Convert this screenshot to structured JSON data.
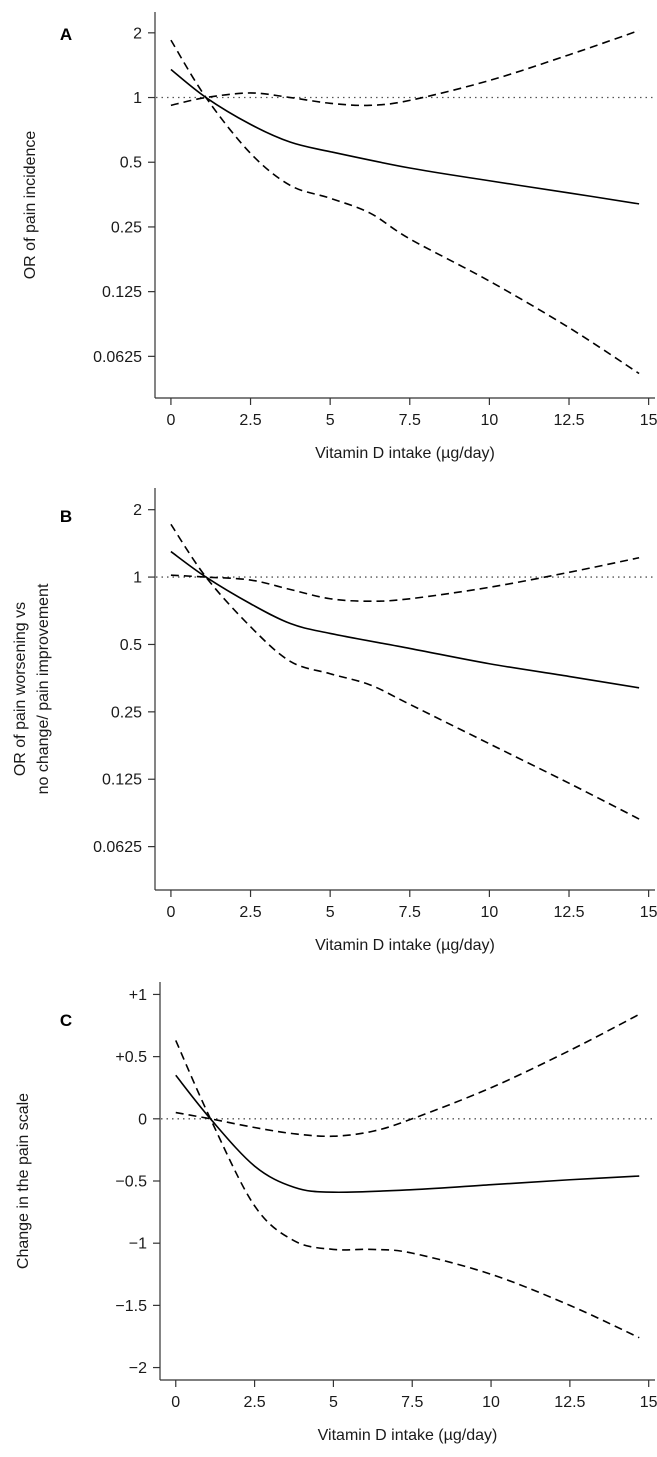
{
  "chart_data": [
    {
      "type": "line",
      "panel": "A",
      "xlabel": "Vitamin D intake (µg/day)",
      "ylabel_lines": [
        "OR of pain incidence"
      ],
      "scale": "log2",
      "x_ticks": [
        0,
        2.5,
        5,
        7.5,
        10,
        12.5,
        15
      ],
      "x_tick_labels": [
        "0",
        "2.5",
        "5",
        "7.5",
        "10",
        "12.5",
        "15"
      ],
      "y_ticks": [
        0.0625,
        0.125,
        0.25,
        0.5,
        1,
        2
      ],
      "y_tick_labels": [
        "0.0625",
        "0.125",
        "0.25",
        "0.5",
        "1",
        "2"
      ],
      "xlim": [
        -0.5,
        15.2
      ],
      "ylim": [
        0.04,
        2.5
      ],
      "reference_line": 1,
      "series": [
        {
          "role": "estimate",
          "x": [
            0,
            1.1,
            2.5,
            3.75,
            5,
            7.5,
            10,
            12.5,
            14.7
          ],
          "y": [
            1.35,
            1.0,
            0.75,
            0.62,
            0.56,
            0.47,
            0.41,
            0.36,
            0.32
          ]
        },
        {
          "role": "upper",
          "x": [
            0,
            1.1,
            2.5,
            3.75,
            5,
            6.25,
            7.5,
            10,
            12.5,
            14.7
          ],
          "y": [
            0.92,
            1.0,
            1.05,
            1.0,
            0.94,
            0.92,
            0.97,
            1.2,
            1.58,
            2.05
          ]
        },
        {
          "role": "lower",
          "x": [
            0,
            1.1,
            2.5,
            3.75,
            5,
            6.25,
            7.5,
            10,
            12.5,
            14.7
          ],
          "y": [
            1.85,
            1.0,
            0.55,
            0.39,
            0.34,
            0.29,
            0.22,
            0.14,
            0.085,
            0.052
          ]
        }
      ]
    },
    {
      "type": "line",
      "panel": "B",
      "xlabel": "Vitamin D intake (µg/day)",
      "ylabel_lines": [
        "OR of pain worsening vs",
        "no change/ pain improvement"
      ],
      "scale": "log2",
      "x_ticks": [
        0,
        2.5,
        5,
        7.5,
        10,
        12.5,
        15
      ],
      "x_tick_labels": [
        "0",
        "2.5",
        "5",
        "7.5",
        "10",
        "12.5",
        "15"
      ],
      "y_ticks": [
        0.0625,
        0.125,
        0.25,
        0.5,
        1,
        2
      ],
      "y_tick_labels": [
        "0.0625",
        "0.125",
        "0.25",
        "0.5",
        "1",
        "2"
      ],
      "xlim": [
        -0.5,
        15.2
      ],
      "ylim": [
        0.04,
        2.5
      ],
      "reference_line": 1,
      "series": [
        {
          "role": "estimate",
          "x": [
            0,
            1.1,
            2.5,
            3.75,
            5,
            7.5,
            10,
            12.5,
            14.7
          ],
          "y": [
            1.3,
            1.0,
            0.76,
            0.62,
            0.56,
            0.48,
            0.41,
            0.36,
            0.32
          ]
        },
        {
          "role": "upper",
          "x": [
            0,
            1.1,
            2.5,
            3.75,
            5,
            6.25,
            7.5,
            10,
            12.5,
            14.7
          ],
          "y": [
            1.02,
            1.0,
            0.97,
            0.88,
            0.8,
            0.78,
            0.8,
            0.9,
            1.05,
            1.22
          ]
        },
        {
          "role": "lower",
          "x": [
            0,
            1.1,
            2.5,
            3.75,
            5,
            6.25,
            7.5,
            10,
            12.5,
            14.7
          ],
          "y": [
            1.72,
            1.0,
            0.6,
            0.42,
            0.37,
            0.33,
            0.27,
            0.18,
            0.12,
            0.083
          ]
        }
      ]
    },
    {
      "type": "line",
      "panel": "C",
      "xlabel": "Vitamin D intake (µg/day)",
      "ylabel_lines": [
        "Change in the pain scale"
      ],
      "scale": "linear",
      "x_ticks": [
        0,
        2.5,
        5,
        7.5,
        10,
        12.5,
        15
      ],
      "x_tick_labels": [
        "0",
        "2.5",
        "5",
        "7.5",
        "10",
        "12.5",
        "15"
      ],
      "y_ticks": [
        -2,
        -1.5,
        -1,
        -0.5,
        0,
        0.5,
        1
      ],
      "y_tick_labels": [
        "−2",
        "−1.5",
        "−1",
        "−0.5",
        "0",
        "+0.5",
        "+1"
      ],
      "xlim": [
        -0.5,
        15.2
      ],
      "ylim": [
        -2.1,
        1.1
      ],
      "reference_line": 0,
      "series": [
        {
          "role": "estimate",
          "x": [
            0,
            1.1,
            2.5,
            3.75,
            5,
            7.5,
            10,
            12.5,
            14.7
          ],
          "y": [
            0.35,
            0.0,
            -0.38,
            -0.55,
            -0.59,
            -0.57,
            -0.53,
            -0.49,
            -0.46
          ]
        },
        {
          "role": "upper",
          "x": [
            0,
            1.1,
            2.5,
            3.75,
            5,
            6.25,
            7.5,
            10,
            12.5,
            14.7
          ],
          "y": [
            0.05,
            0.0,
            -0.07,
            -0.12,
            -0.14,
            -0.1,
            0.0,
            0.25,
            0.55,
            0.84
          ]
        },
        {
          "role": "lower",
          "x": [
            0,
            1.1,
            2.5,
            3.75,
            5,
            6.25,
            7.5,
            10,
            12.5,
            14.7
          ],
          "y": [
            0.63,
            0.0,
            -0.7,
            -0.98,
            -1.05,
            -1.05,
            -1.08,
            -1.25,
            -1.5,
            -1.76
          ]
        }
      ]
    }
  ]
}
